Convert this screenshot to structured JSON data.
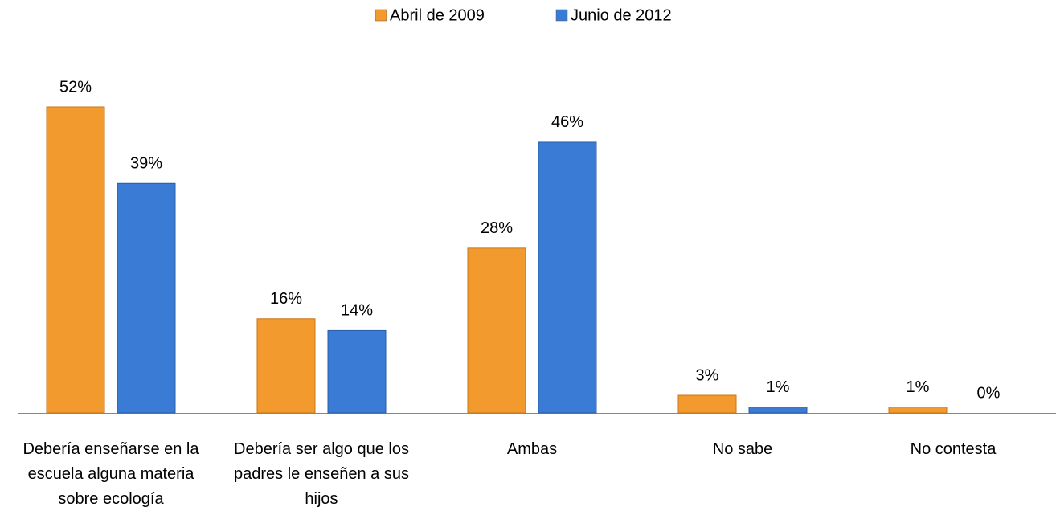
{
  "chart_data": {
    "type": "bar",
    "categories": [
      "Debería enseñarse en la escuela alguna materia sobre ecología",
      "Debería ser algo que los padres le enseñen a sus hijos",
      "Ambas",
      "No sabe",
      "No contesta"
    ],
    "series": [
      {
        "name": "Abril de 2009",
        "color": "#f39a2e",
        "values": [
          52,
          16,
          28,
          3,
          1
        ],
        "value_labels": [
          "52%",
          "16%",
          "28%",
          "3%",
          "1%"
        ]
      },
      {
        "name": "Junio de 2012",
        "color": "#3a7bd5",
        "values": [
          39,
          14,
          46,
          1,
          0
        ],
        "value_labels": [
          "39%",
          "14%",
          "46%",
          "1%",
          "0%"
        ]
      }
    ],
    "legend": "top"
  }
}
